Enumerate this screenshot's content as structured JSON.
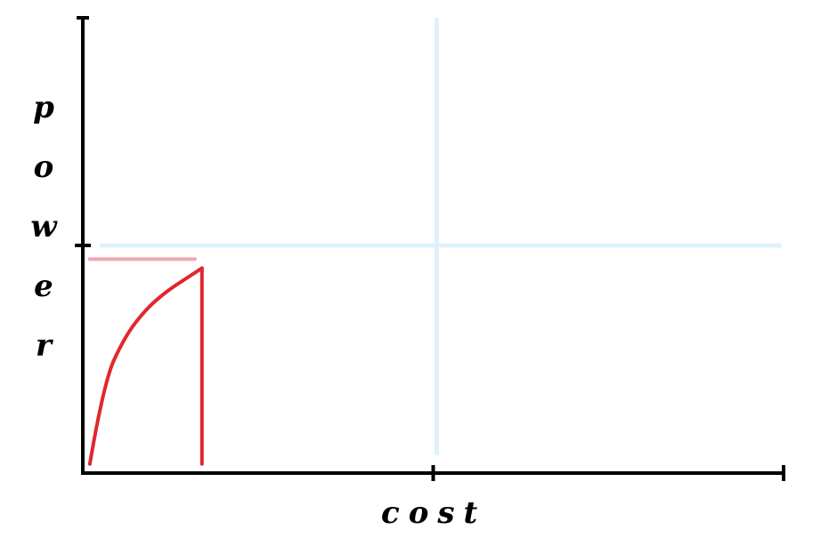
{
  "chart_data": {
    "type": "line",
    "xlabel": "cost",
    "ylabel": "power",
    "ylabel_letters": [
      "p",
      "o",
      "w",
      "e",
      "r"
    ],
    "xlim": [
      0,
      1
    ],
    "ylim": [
      0,
      1
    ],
    "x_ticks": [
      0.5,
      1.0
    ],
    "y_ticks": [
      0.5
    ],
    "reference_lines": {
      "vertical_at_x": 0.5,
      "horizontal_at_y": 0.5,
      "color": "#dff2fb"
    },
    "series": [
      {
        "kind": "curve",
        "color": "#e0282d",
        "x": [
          0.01,
          0.03,
          0.06,
          0.09,
          0.12,
          0.15,
          0.17
        ],
        "y": [
          0.02,
          0.2,
          0.3,
          0.36,
          0.4,
          0.43,
          0.45
        ]
      },
      {
        "kind": "drop-line",
        "color": "#e0282d",
        "x": [
          0.17,
          0.17
        ],
        "y": [
          0.45,
          0.02
        ]
      },
      {
        "kind": "level-line",
        "color": "#f0a5b5",
        "x": [
          0.01,
          0.16
        ],
        "y": [
          0.47,
          0.47
        ]
      }
    ]
  }
}
